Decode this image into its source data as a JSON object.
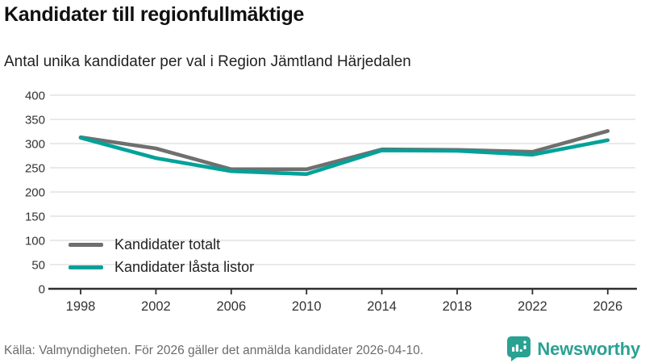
{
  "title": "Kandidater till regionfullmäktige",
  "subtitle": "Antal unika kandidater per val i Region Jämtland Härjedalen",
  "footer": {
    "source": "Källa: Valmyndigheten. För 2026 gäller det anmälda kandidater 2026-04-10.",
    "brand": "Newsworthy"
  },
  "colors": {
    "total": "#6f6f6f",
    "locked": "#00a29a",
    "grid": "#dcdcdc",
    "axis": "#2f2f2f",
    "brand": "#2aa193"
  },
  "chart_data": {
    "type": "line",
    "x": [
      1998,
      2002,
      2006,
      2010,
      2014,
      2018,
      2022,
      2026
    ],
    "series": [
      {
        "name": "Kandidater totalt",
        "color_key": "total",
        "values": [
          313,
          290,
          247,
          247,
          288,
          287,
          283,
          326
        ]
      },
      {
        "name": "Kandidater låsta listor",
        "color_key": "locked",
        "values": [
          312,
          270,
          243,
          237,
          286,
          285,
          277,
          307
        ]
      }
    ],
    "title": "Kandidater till regionfullmäktige",
    "xlabel": "",
    "ylabel": "",
    "ylim": [
      0,
      400
    ],
    "yticks": [
      0,
      50,
      100,
      150,
      200,
      250,
      300,
      350,
      400
    ],
    "grid": true,
    "legend_position": "inside-bottom-left"
  }
}
